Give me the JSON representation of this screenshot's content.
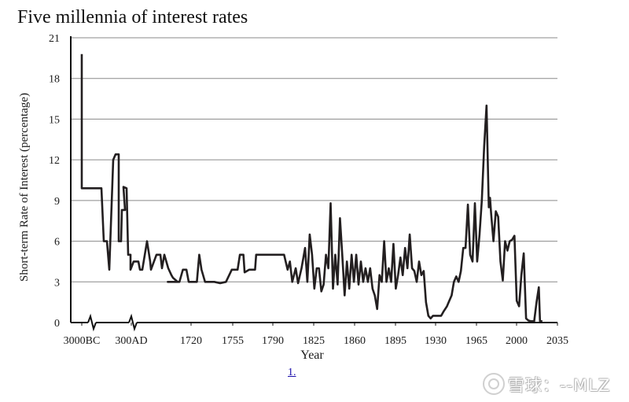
{
  "chart_data": {
    "type": "line",
    "title": "Five millennia of interest rates",
    "xlabel": "Year",
    "ylabel": "Short-term Rate of Interest (percentage)",
    "ylim": [
      0,
      21
    ],
    "yticks": [
      0,
      3,
      6,
      9,
      12,
      15,
      18,
      21
    ],
    "xtick_labels": [
      "3000BC",
      "300AD",
      "1720",
      "1755",
      "1790",
      "1825",
      "1860",
      "1895",
      "1930",
      "1965",
      "2000",
      "2035"
    ],
    "x_axis_breaks": "between 3000BC and 300AD and between 300AD and 1720",
    "grid": "horizontal",
    "series": [
      {
        "values_note": "early segment, compressed scale (3000BC to ~1700)",
        "early_points": [
          [
            "3000BC",
            19.8
          ],
          [
            "3000BC",
            9.9
          ],
          [
            "early",
            9.9
          ],
          [
            "early",
            6.0
          ],
          [
            "early",
            6.0
          ],
          [
            "early",
            3.9
          ],
          [
            "early",
            12.0
          ],
          [
            "early",
            12.4
          ],
          [
            "early",
            12.4
          ],
          [
            "early",
            6.0
          ],
          [
            "early",
            6.0
          ],
          [
            "early",
            8.3
          ],
          [
            "early",
            8.3
          ],
          [
            "300AD",
            10.0
          ],
          [
            "300AD",
            9.9
          ],
          [
            "mid",
            5.0
          ],
          [
            "mid",
            5.0
          ],
          [
            "mid",
            3.9
          ],
          [
            "mid",
            4.5
          ],
          [
            "mid",
            4.5
          ],
          [
            "mid",
            3.9
          ],
          [
            "mid",
            3.9
          ],
          [
            "mid",
            6.0
          ],
          [
            "mid",
            4.5
          ],
          [
            "mid",
            3.9
          ],
          [
            "mid",
            5.0
          ],
          [
            "mid",
            5.0
          ],
          [
            "mid",
            4.0
          ],
          [
            "mid",
            5.0
          ],
          [
            "mid",
            4.0
          ],
          [
            "mid",
            3.5
          ],
          [
            "mid",
            3.3
          ],
          [
            "1700",
            3.0
          ]
        ],
        "points": [
          [
            1700,
            3.0
          ],
          [
            1710,
            3.0
          ],
          [
            1713,
            3.9
          ],
          [
            1716,
            3.9
          ],
          [
            1718,
            3.0
          ],
          [
            1725,
            3.0
          ],
          [
            1727,
            5.0
          ],
          [
            1729,
            3.9
          ],
          [
            1732,
            3.0
          ],
          [
            1740,
            3.0
          ],
          [
            1745,
            2.9
          ],
          [
            1750,
            3.0
          ],
          [
            1755,
            3.9
          ],
          [
            1760,
            3.9
          ],
          [
            1762,
            5.0
          ],
          [
            1765,
            5.0
          ],
          [
            1766,
            3.7
          ],
          [
            1770,
            3.9
          ],
          [
            1775,
            3.9
          ],
          [
            1776,
            5.0
          ],
          [
            1800,
            5.0
          ],
          [
            1803,
            3.9
          ],
          [
            1805,
            4.5
          ],
          [
            1807,
            3.0
          ],
          [
            1810,
            4.0
          ],
          [
            1812,
            2.9
          ],
          [
            1815,
            4.0
          ],
          [
            1818,
            5.5
          ],
          [
            1820,
            3.0
          ],
          [
            1822,
            6.5
          ],
          [
            1824,
            5.0
          ],
          [
            1826,
            2.5
          ],
          [
            1828,
            4.0
          ],
          [
            1830,
            4.0
          ],
          [
            1832,
            2.3
          ],
          [
            1834,
            2.8
          ],
          [
            1836,
            5.0
          ],
          [
            1838,
            4.0
          ],
          [
            1840,
            8.8
          ],
          [
            1842,
            2.5
          ],
          [
            1844,
            5.0
          ],
          [
            1846,
            2.8
          ],
          [
            1848,
            7.7
          ],
          [
            1850,
            5.0
          ],
          [
            1852,
            2.0
          ],
          [
            1854,
            4.5
          ],
          [
            1856,
            2.5
          ],
          [
            1858,
            5.0
          ],
          [
            1860,
            3.0
          ],
          [
            1862,
            5.0
          ],
          [
            1864,
            2.8
          ],
          [
            1866,
            4.5
          ],
          [
            1868,
            3.0
          ],
          [
            1870,
            4.0
          ],
          [
            1872,
            3.0
          ],
          [
            1874,
            4.0
          ],
          [
            1876,
            2.5
          ],
          [
            1878,
            2.0
          ],
          [
            1880,
            1.0
          ],
          [
            1882,
            3.5
          ],
          [
            1884,
            3.0
          ],
          [
            1886,
            6.0
          ],
          [
            1888,
            3.0
          ],
          [
            1890,
            4.0
          ],
          [
            1892,
            3.0
          ],
          [
            1894,
            5.8
          ],
          [
            1896,
            2.5
          ],
          [
            1898,
            3.5
          ],
          [
            1900,
            4.8
          ],
          [
            1902,
            3.5
          ],
          [
            1904,
            5.5
          ],
          [
            1906,
            4.0
          ],
          [
            1908,
            6.5
          ],
          [
            1910,
            4.0
          ],
          [
            1912,
            3.8
          ],
          [
            1914,
            3.0
          ],
          [
            1916,
            4.5
          ],
          [
            1918,
            3.5
          ],
          [
            1920,
            3.8
          ],
          [
            1922,
            1.5
          ],
          [
            1924,
            0.5
          ],
          [
            1926,
            0.3
          ],
          [
            1928,
            0.5
          ],
          [
            1932,
            0.5
          ],
          [
            1935,
            0.5
          ],
          [
            1937,
            0.8
          ],
          [
            1940,
            1.2
          ],
          [
            1942,
            1.6
          ],
          [
            1944,
            2.0
          ],
          [
            1946,
            3.0
          ],
          [
            1948,
            3.4
          ],
          [
            1950,
            3.0
          ],
          [
            1952,
            3.8
          ],
          [
            1954,
            5.5
          ],
          [
            1956,
            5.5
          ],
          [
            1958,
            8.7
          ],
          [
            1960,
            5.0
          ],
          [
            1962,
            4.5
          ],
          [
            1964,
            8.8
          ],
          [
            1966,
            4.5
          ],
          [
            1968,
            6.5
          ],
          [
            1970,
            9.0
          ],
          [
            1972,
            13.0
          ],
          [
            1974,
            16.0
          ],
          [
            1976,
            8.5
          ],
          [
            1977,
            9.2
          ],
          [
            1978,
            8.0
          ],
          [
            1980,
            6.0
          ],
          [
            1982,
            8.2
          ],
          [
            1984,
            7.8
          ],
          [
            1986,
            4.5
          ],
          [
            1988,
            3.1
          ],
          [
            1990,
            6.0
          ],
          [
            1992,
            5.3
          ],
          [
            1994,
            6.0
          ],
          [
            1996,
            6.1
          ],
          [
            1998,
            6.4
          ],
          [
            2000,
            1.6
          ],
          [
            2002,
            1.2
          ],
          [
            2004,
            3.5
          ],
          [
            2006,
            5.1
          ],
          [
            2008,
            0.3
          ],
          [
            2010,
            0.15
          ],
          [
            2012,
            0.1
          ],
          [
            2015,
            0.1
          ],
          [
            2017,
            1.5
          ],
          [
            2019,
            2.6
          ],
          [
            2020,
            0.1
          ],
          [
            2022,
            0.1
          ]
        ]
      }
    ]
  },
  "footnote": {
    "label": "1."
  },
  "watermark": {
    "text": "雪球：--MLZ"
  }
}
